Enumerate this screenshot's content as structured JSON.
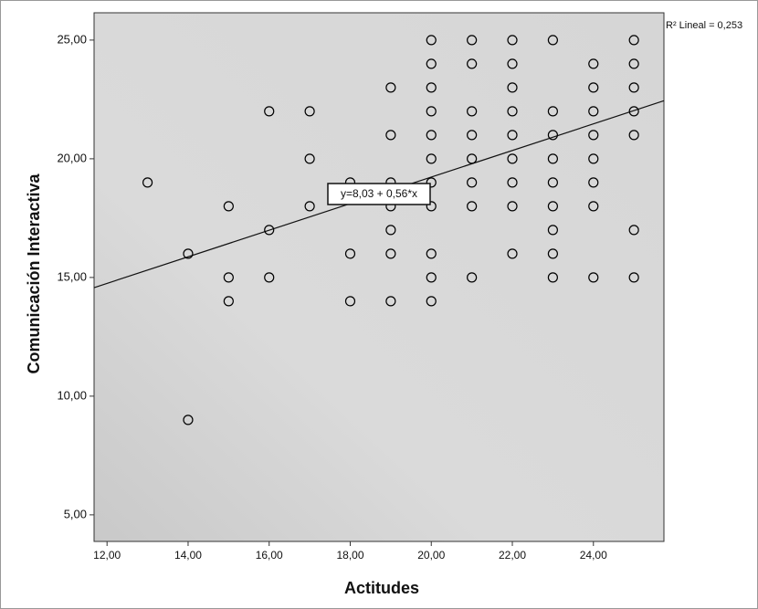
{
  "chart_data": {
    "type": "scatter",
    "x_label": "Actitudes",
    "y_label": "Comunicación Interactiva",
    "x": [
      13,
      14,
      14,
      15,
      15,
      15,
      16,
      16,
      16,
      17,
      17,
      17,
      18,
      18,
      18,
      19,
      19,
      19,
      19,
      19,
      19,
      19,
      20,
      20,
      20,
      20,
      20,
      20,
      20,
      20,
      20,
      20,
      20,
      21,
      21,
      21,
      21,
      21,
      21,
      21,
      21,
      22,
      22,
      22,
      22,
      22,
      22,
      22,
      22,
      22,
      23,
      23,
      23,
      23,
      23,
      23,
      23,
      23,
      23,
      24,
      24,
      24,
      24,
      24,
      24,
      24,
      24,
      25,
      25,
      25,
      25,
      25,
      25,
      25
    ],
    "values": [
      19,
      16,
      9,
      18,
      15,
      14,
      22,
      17,
      15,
      22,
      20,
      18,
      19,
      16,
      14,
      23,
      21,
      19,
      18,
      17,
      16,
      14,
      25,
      24,
      23,
      22,
      21,
      20,
      19,
      18,
      16,
      15,
      14,
      25,
      24,
      22,
      21,
      20,
      19,
      18,
      15,
      25,
      24,
      23,
      22,
      21,
      20,
      19,
      18,
      16,
      25,
      22,
      21,
      20,
      19,
      18,
      17,
      16,
      15,
      24,
      23,
      22,
      21,
      20,
      19,
      18,
      15,
      25,
      24,
      23,
      22,
      21,
      17,
      15
    ],
    "xlim": [
      11.68,
      25.74
    ],
    "ylim": [
      3.88,
      26.15
    ],
    "xticks": [
      {
        "value": 12,
        "label": "12,00"
      },
      {
        "value": 14,
        "label": "14,00"
      },
      {
        "value": 16,
        "label": "16,00"
      },
      {
        "value": 18,
        "label": "18,00"
      },
      {
        "value": 20,
        "label": "20,00"
      },
      {
        "value": 22,
        "label": "22,00"
      },
      {
        "value": 24,
        "label": "24,00"
      }
    ],
    "yticks": [
      {
        "value": 5,
        "label": "5,00"
      },
      {
        "value": 10,
        "label": "10,00"
      },
      {
        "value": 15,
        "label": "15,00"
      },
      {
        "value": 20,
        "label": "20,00"
      },
      {
        "value": 25,
        "label": "25,00"
      }
    ],
    "fit": {
      "intercept": 8.03,
      "slope": 0.56,
      "label": "y=8,03 + 0,56*x"
    },
    "r2_label": "R² Lineal = 0,253",
    "color": "#000000"
  }
}
